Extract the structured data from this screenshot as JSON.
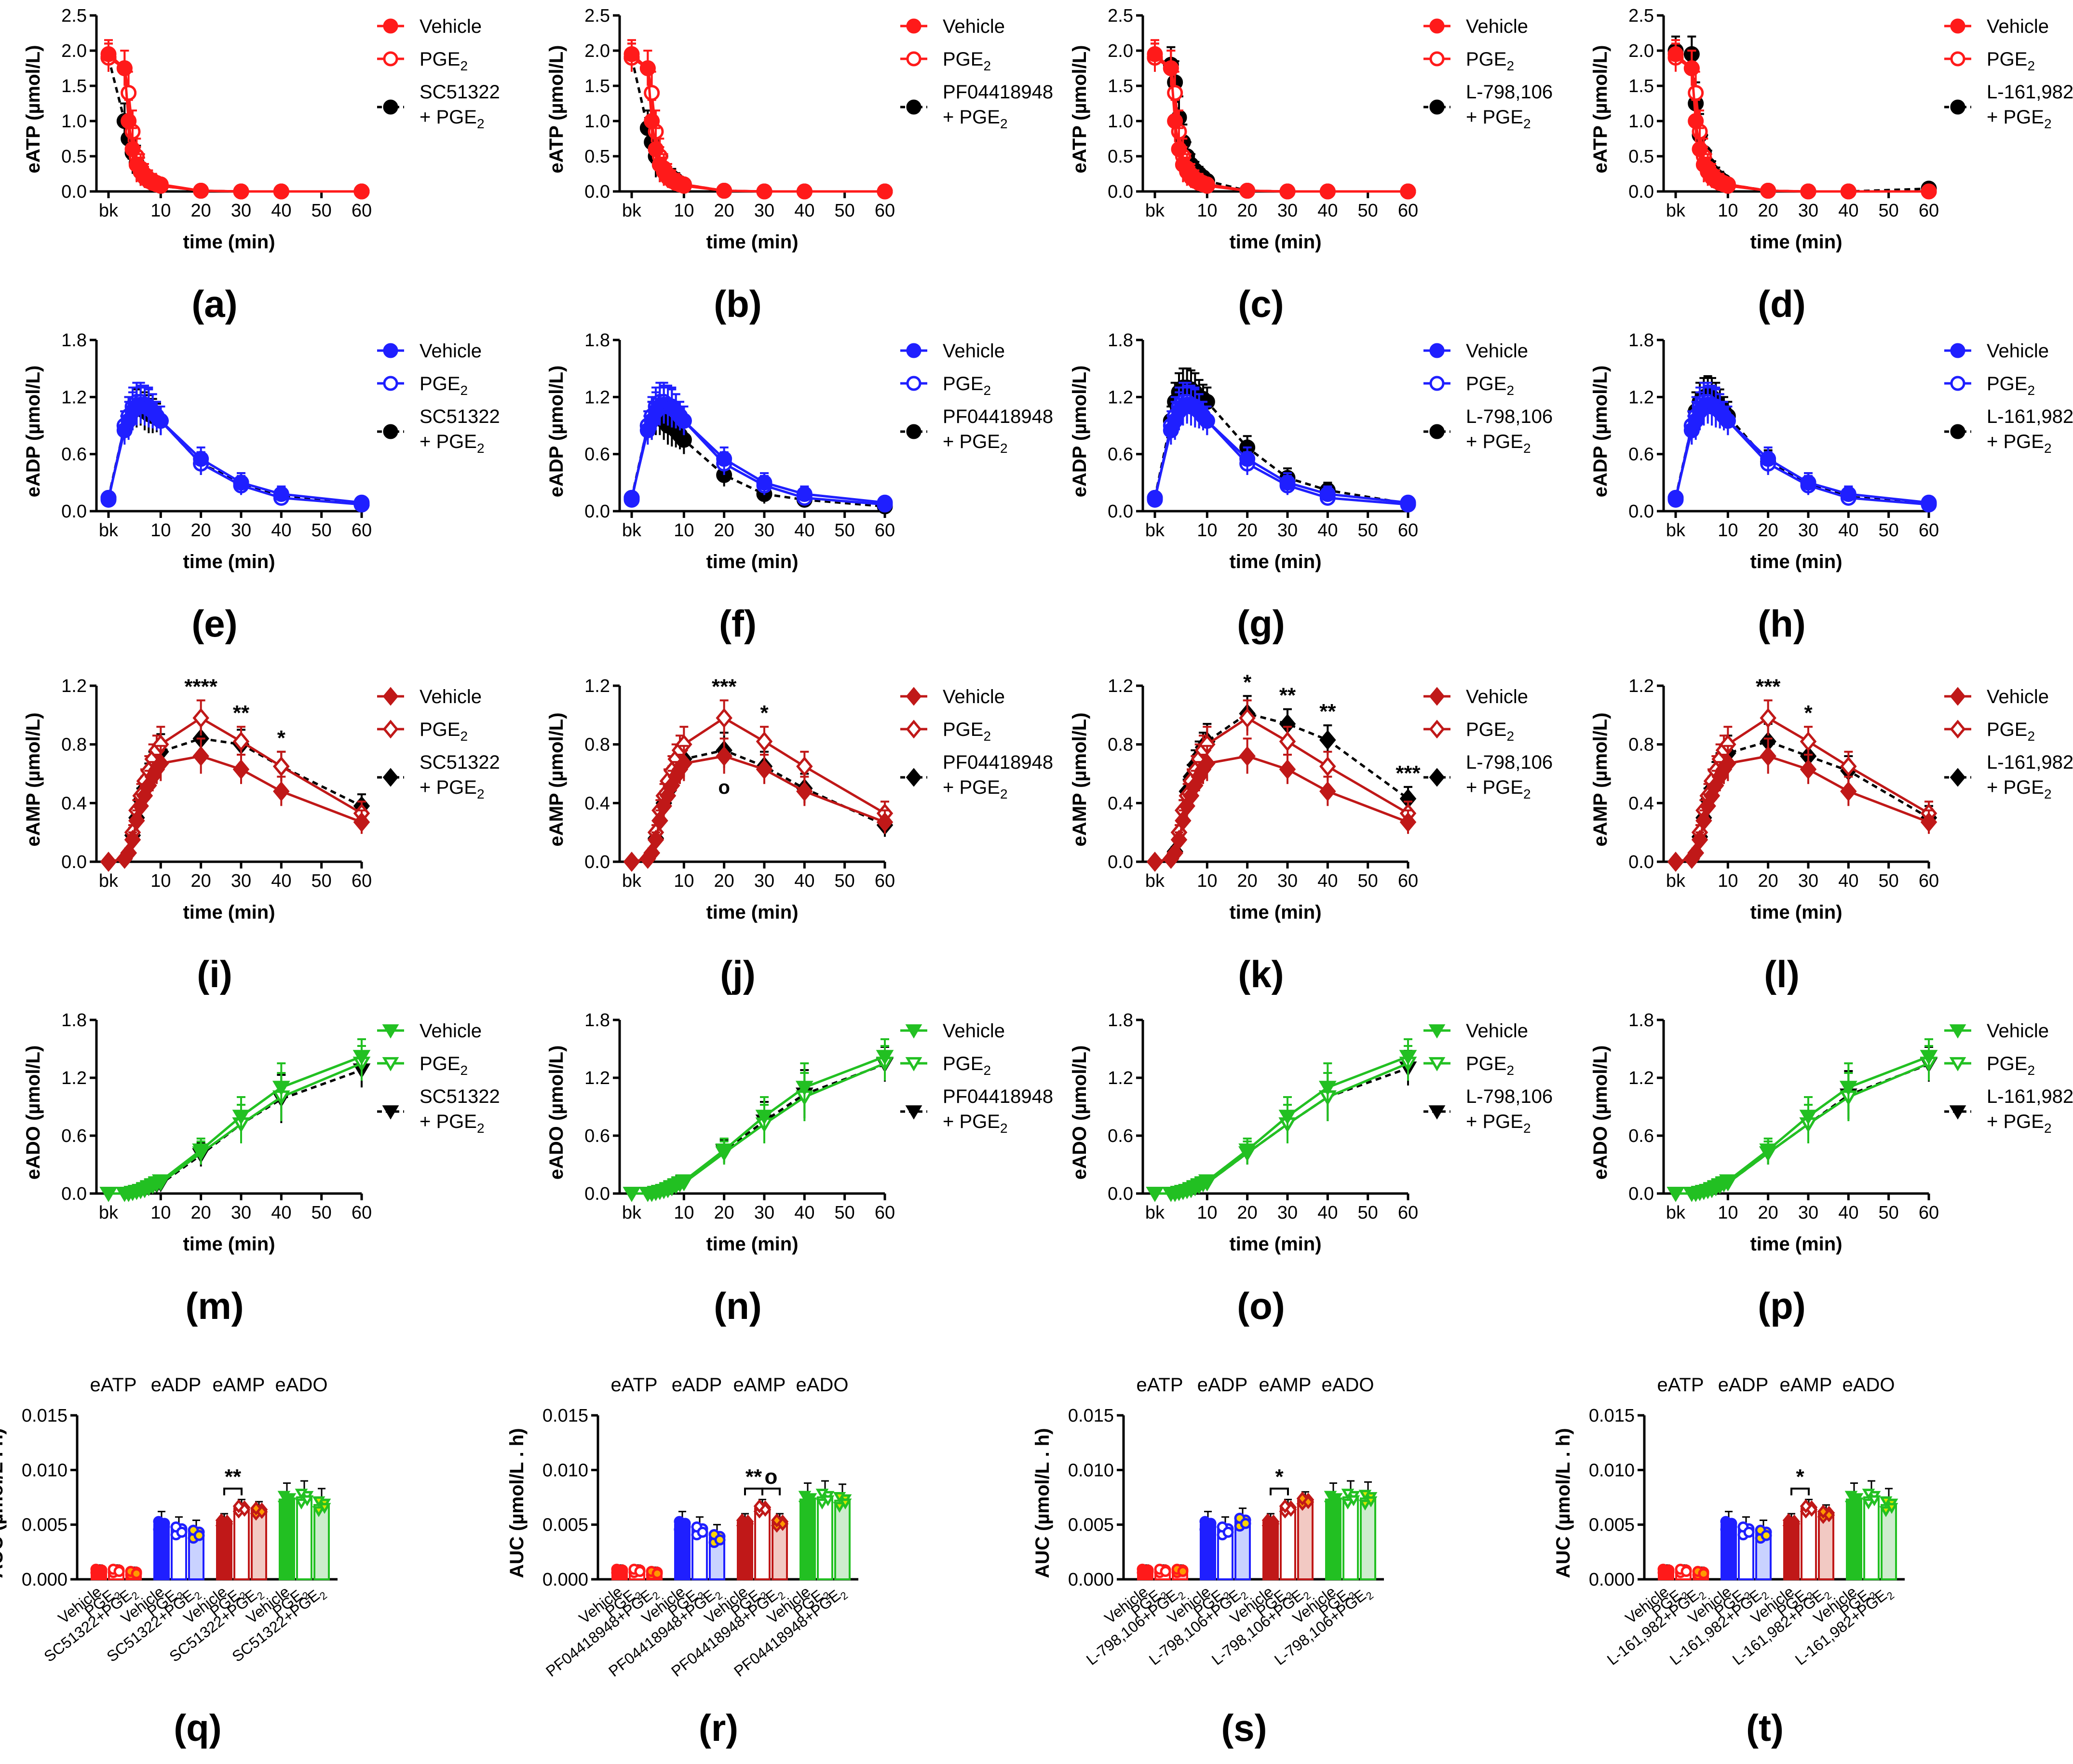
{
  "figure": {
    "time_label": "time (min)",
    "bk_label": "bk",
    "auc_ylabel": "AUC (µmol/L . h)",
    "legend_vehicle": "Vehicle",
    "legend_pge": "PGE",
    "legend_pge_sub": "2",
    "legend_plus_pge": "+ PGE",
    "nucleotides": [
      "eATP",
      "eADP",
      "eAMP",
      "eADO"
    ],
    "ylabels": [
      "eATP (µmol/L)",
      "eADP (µmol/L)",
      "eAMP (µmol/L)",
      "eADO (µmol/L)"
    ],
    "colors": {
      "eATP": "#ff1a1a",
      "eADP": "#1f1fff",
      "eAMP": "#c01818",
      "eADO": "#22c022",
      "antagonist": "#000000",
      "antagonist_bar_eATP": "#ffb7b7",
      "antagonist_bar_eADP": "#c9d2ff",
      "antagonist_bar_eAMP": "#f2c9c3",
      "antagonist_bar_eADO": "#cdeccd",
      "antagonist_point_eATP": "#ff9900",
      "antagonist_point_eADP": "#ffd400",
      "antagonist_point_eAMP": "#ff9900",
      "antagonist_point_eADO": "#d8e600"
    },
    "antagonists": [
      "SC51322",
      "PF04418948",
      "L-798,106",
      "L-161,982"
    ],
    "panel_letters": [
      "(a)",
      "(b)",
      "(c)",
      "(d)",
      "(e)",
      "(f)",
      "(g)",
      "(h)",
      "(i)",
      "(j)",
      "(k)",
      "(l)",
      "(m)",
      "(n)",
      "(o)",
      "(p)",
      "(q)",
      "(r)",
      "(s)",
      "(t)"
    ],
    "bar_category_labels": {
      "vehicle": "Vehicle",
      "pge": "PGE",
      "pge_sub": "2"
    }
  },
  "chart_data": {
    "type": "line",
    "x": [
      "bk",
      1,
      2,
      3,
      4,
      5,
      6,
      7,
      8,
      9,
      10,
      20,
      30,
      40,
      60
    ],
    "x_numeric": [
      -3,
      1,
      2,
      3,
      4,
      5,
      6,
      7,
      8,
      9,
      10,
      20,
      30,
      40,
      60
    ],
    "xticks": [
      "bk",
      10,
      20,
      30,
      40,
      50,
      60
    ],
    "xlabel": "time (min)",
    "rows": [
      {
        "nucleotide": "eATP",
        "ylabel": "eATP (µmol/L)",
        "ylim": [
          0,
          2.5
        ],
        "yticks": [
          "0.0",
          "0.5",
          "1.0",
          "1.5",
          "2.0",
          "2.5"
        ],
        "marker": "circle",
        "series": {
          "vehicle": [
            1.95,
            1.75,
            1.0,
            0.6,
            0.38,
            0.28,
            0.2,
            0.15,
            0.12,
            0.1,
            0.08,
            0.01,
            0.0,
            0.0,
            0.0
          ],
          "pge": [
            1.9,
            1.75,
            1.4,
            0.85,
            0.5,
            0.33,
            0.24,
            0.18,
            0.15,
            0.12,
            0.1,
            0.01,
            0.0,
            0.0,
            0.0
          ],
          "err": [
            0.2,
            0.25,
            0.3,
            0.3,
            0.25,
            0.2,
            0.15,
            0.12,
            0.1,
            0.08,
            0.06,
            0.02,
            0.01,
            0.01,
            0.01
          ],
          "antagonist": [
            [
              1.9,
              1.0,
              0.75,
              0.55,
              0.4,
              0.28,
              0.2,
              0.15,
              0.12,
              0.1,
              0.08,
              0.01,
              0.0,
              0.0,
              0.0
            ],
            [
              1.9,
              0.9,
              0.7,
              0.5,
              0.38,
              0.3,
              0.24,
              0.2,
              0.16,
              0.12,
              0.1,
              0.01,
              0.0,
              0.0,
              0.0
            ],
            [
              1.9,
              1.8,
              1.55,
              1.05,
              0.7,
              0.5,
              0.38,
              0.3,
              0.25,
              0.2,
              0.15,
              0.01,
              0.0,
              0.0,
              0.0
            ],
            [
              2.0,
              1.95,
              1.25,
              0.8,
              0.55,
              0.38,
              0.28,
              0.22,
              0.18,
              0.14,
              0.1,
              0.01,
              0.0,
              0.0,
              0.04
            ]
          ]
        },
        "annotations": [
          [],
          [],
          [],
          []
        ]
      },
      {
        "nucleotide": "eADP",
        "ylabel": "eADP (µmol/L)",
        "ylim": [
          0,
          1.8
        ],
        "yticks": [
          "0.0",
          "0.6",
          "1.2",
          "1.8"
        ],
        "marker": "circle",
        "series": {
          "vehicle": [
            0.14,
            0.85,
            0.95,
            1.05,
            1.1,
            1.12,
            1.1,
            1.08,
            1.05,
            1.0,
            0.95,
            0.55,
            0.3,
            0.18,
            0.09
          ],
          "pge": [
            0.12,
            0.9,
            1.0,
            1.1,
            1.15,
            1.15,
            1.12,
            1.1,
            1.05,
            1.0,
            0.95,
            0.5,
            0.27,
            0.14,
            0.07
          ],
          "err": [
            0.05,
            0.15,
            0.2,
            0.2,
            0.2,
            0.2,
            0.2,
            0.2,
            0.18,
            0.15,
            0.15,
            0.12,
            0.1,
            0.08,
            0.06
          ],
          "antagonist": [
            [
              0.14,
              0.9,
              1.0,
              1.05,
              1.08,
              1.1,
              1.05,
              1.02,
              1.0,
              0.98,
              0.95,
              0.5,
              0.3,
              0.16,
              0.07
            ],
            [
              0.14,
              0.9,
              0.95,
              1.0,
              1.0,
              0.95,
              0.9,
              0.88,
              0.85,
              0.8,
              0.75,
              0.38,
              0.18,
              0.12,
              0.05
            ],
            [
              0.14,
              0.95,
              1.15,
              1.25,
              1.3,
              1.3,
              1.28,
              1.25,
              1.2,
              1.18,
              1.15,
              0.67,
              0.35,
              0.22,
              0.08
            ],
            [
              0.14,
              0.9,
              1.05,
              1.15,
              1.2,
              1.22,
              1.2,
              1.15,
              1.1,
              1.05,
              1.0,
              0.52,
              0.3,
              0.15,
              0.08
            ]
          ]
        },
        "annotations": [
          [],
          [],
          [],
          []
        ]
      },
      {
        "nucleotide": "eAMP",
        "ylabel": "eAMP (µmol/L)",
        "ylim": [
          0,
          1.2
        ],
        "yticks": [
          "0.0",
          "0.4",
          "0.8",
          "1.2"
        ],
        "marker": "diamond",
        "series": {
          "vehicle": [
            0.0,
            0.02,
            0.06,
            0.15,
            0.28,
            0.38,
            0.45,
            0.52,
            0.58,
            0.63,
            0.67,
            0.72,
            0.63,
            0.48,
            0.27
          ],
          "pge": [
            0.0,
            0.02,
            0.06,
            0.2,
            0.35,
            0.45,
            0.55,
            0.62,
            0.7,
            0.76,
            0.8,
            0.98,
            0.82,
            0.65,
            0.33
          ],
          "err": [
            0.01,
            0.02,
            0.03,
            0.05,
            0.07,
            0.08,
            0.08,
            0.1,
            0.1,
            0.1,
            0.12,
            0.12,
            0.1,
            0.1,
            0.08
          ],
          "antagonist": [
            [
              0.0,
              0.02,
              0.06,
              0.18,
              0.3,
              0.42,
              0.5,
              0.57,
              0.65,
              0.7,
              0.75,
              0.84,
              0.8,
              0.65,
              0.38
            ],
            [
              0.0,
              0.02,
              0.06,
              0.16,
              0.28,
              0.4,
              0.48,
              0.55,
              0.62,
              0.68,
              0.7,
              0.76,
              0.65,
              0.5,
              0.25
            ],
            [
              0.0,
              0.02,
              0.07,
              0.2,
              0.35,
              0.48,
              0.58,
              0.66,
              0.72,
              0.78,
              0.82,
              1.01,
              0.94,
              0.83,
              0.43
            ],
            [
              0.0,
              0.02,
              0.06,
              0.17,
              0.3,
              0.42,
              0.5,
              0.58,
              0.64,
              0.7,
              0.74,
              0.82,
              0.72,
              0.62,
              0.3
            ]
          ]
        },
        "annotations": [
          [
            {
              "x": 20,
              "text": "****"
            },
            {
              "x": 30,
              "text": "**"
            },
            {
              "x": 40,
              "text": "*"
            }
          ],
          [
            {
              "x": 20,
              "text": "***"
            },
            {
              "x": 30,
              "text": "*"
            },
            {
              "x": 20,
              "text": "o",
              "pos": "below"
            }
          ],
          [
            {
              "x": 20,
              "text": "*"
            },
            {
              "x": 30,
              "text": "**"
            },
            {
              "x": 40,
              "text": "**"
            },
            {
              "x": 60,
              "text": "***"
            }
          ],
          [
            {
              "x": 20,
              "text": "***"
            },
            {
              "x": 30,
              "text": "*"
            }
          ]
        ]
      },
      {
        "nucleotide": "eADO",
        "ylabel": "eADO (µmol/L)",
        "ylim": [
          0,
          1.8
        ],
        "yticks": [
          "0.0",
          "0.6",
          "1.2",
          "1.8"
        ],
        "marker": "triangle-down",
        "series": {
          "vehicle": [
            0.0,
            0.0,
            0.0,
            0.01,
            0.02,
            0.03,
            0.05,
            0.07,
            0.09,
            0.11,
            0.13,
            0.45,
            0.8,
            1.1,
            1.42
          ],
          "pge": [
            0.0,
            0.0,
            0.0,
            0.01,
            0.02,
            0.03,
            0.04,
            0.06,
            0.08,
            0.1,
            0.11,
            0.42,
            0.72,
            1.0,
            1.35
          ],
          "err": [
            0.0,
            0.0,
            0.0,
            0.01,
            0.01,
            0.02,
            0.02,
            0.03,
            0.03,
            0.04,
            0.05,
            0.12,
            0.2,
            0.25,
            0.18
          ],
          "antagonist": [
            [
              0.0,
              0.0,
              0.0,
              0.01,
              0.02,
              0.03,
              0.04,
              0.06,
              0.08,
              0.09,
              0.1,
              0.4,
              0.72,
              0.98,
              1.28
            ],
            [
              0.0,
              0.0,
              0.0,
              0.01,
              0.02,
              0.03,
              0.04,
              0.06,
              0.08,
              0.1,
              0.12,
              0.44,
              0.75,
              1.03,
              1.34
            ],
            [
              0.0,
              0.0,
              0.0,
              0.01,
              0.02,
              0.03,
              0.04,
              0.06,
              0.08,
              0.1,
              0.11,
              0.42,
              0.72,
              1.0,
              1.3
            ],
            [
              0.0,
              0.0,
              0.0,
              0.01,
              0.02,
              0.03,
              0.04,
              0.06,
              0.08,
              0.1,
              0.11,
              0.42,
              0.72,
              1.02,
              1.34
            ]
          ]
        },
        "annotations": [
          [],
          [],
          [],
          []
        ]
      }
    ],
    "auc": {
      "type": "bar",
      "ylabel": "AUC (µmol/L . h)",
      "ylim": [
        0,
        0.015
      ],
      "yticks": [
        "0.000",
        "0.005",
        "0.010",
        "0.015"
      ],
      "groups": [
        "eATP",
        "eADP",
        "eAMP",
        "eADO"
      ],
      "vehicle": [
        0.0008,
        0.005,
        0.0052,
        0.0073
      ],
      "pge": [
        0.0008,
        0.0045,
        0.0065,
        0.0075
      ],
      "err": [
        0.0005,
        0.0012,
        0.0008,
        0.0015
      ],
      "antagonist": [
        [
          0.0006,
          0.0042,
          0.0063,
          0.0068
        ],
        [
          0.0006,
          0.0038,
          0.0052,
          0.0072
        ],
        [
          0.0008,
          0.0053,
          0.0072,
          0.0074
        ],
        [
          0.0006,
          0.0042,
          0.006,
          0.0068
        ]
      ],
      "annotations": [
        [
          {
            "text": "**",
            "from": 0,
            "to": 1
          }
        ],
        [
          {
            "text": "**",
            "from": 0,
            "to": 1
          },
          {
            "text": "o",
            "from": 1,
            "to": 2
          }
        ],
        [
          {
            "text": "*",
            "from": 0,
            "to": 1
          }
        ],
        [
          {
            "text": "*",
            "from": 0,
            "to": 1
          }
        ]
      ]
    }
  }
}
